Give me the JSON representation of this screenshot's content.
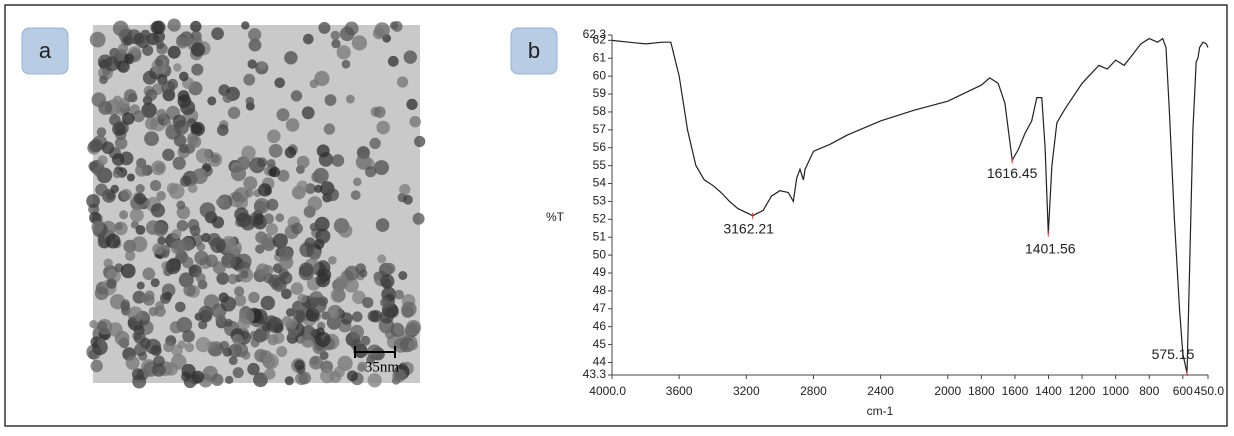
{
  "panels": {
    "a": {
      "label": "a",
      "scale_bar": "35nm"
    },
    "b": {
      "label": "b"
    }
  },
  "chart_data": {
    "type": "line",
    "y_label": "%T",
    "x_label": "cm-1",
    "x": [
      4000,
      3900,
      3800,
      3700,
      3650,
      3600,
      3550,
      3500,
      3450,
      3400,
      3350,
      3300,
      3250,
      3162,
      3100,
      3050,
      3000,
      2950,
      2920,
      2900,
      2880,
      2860,
      2850,
      2800,
      2700,
      2600,
      2400,
      2200,
      2000,
      1800,
      1750,
      1700,
      1660,
      1616,
      1580,
      1540,
      1500,
      1470,
      1440,
      1420,
      1401,
      1380,
      1350,
      1300,
      1200,
      1100,
      1050,
      1000,
      950,
      900,
      850,
      800,
      750,
      720,
      700,
      680,
      650,
      620,
      600,
      575,
      560,
      540,
      520,
      510,
      500,
      480,
      460,
      450
    ],
    "values": [
      62.0,
      61.9,
      61.8,
      61.9,
      61.9,
      60.0,
      57.0,
      55.0,
      54.2,
      53.9,
      53.5,
      53.0,
      52.6,
      52.2,
      52.5,
      53.3,
      53.6,
      53.5,
      53.0,
      54.3,
      54.8,
      54.2,
      54.8,
      55.8,
      56.2,
      56.7,
      57.5,
      58.1,
      58.6,
      59.5,
      59.9,
      59.6,
      58.5,
      55.3,
      55.9,
      56.8,
      57.5,
      58.8,
      58.8,
      56.0,
      51.2,
      55.0,
      57.4,
      58.2,
      59.6,
      60.6,
      60.4,
      60.9,
      60.6,
      61.2,
      61.8,
      62.1,
      61.9,
      62.1,
      61.6,
      58.0,
      52.0,
      47.0,
      44.5,
      43.4,
      49.0,
      57.0,
      60.8,
      61.0,
      61.6,
      61.9,
      61.8,
      61.6
    ],
    "color": "#222222",
    "peaks": {
      "x": [
        3162.21,
        1616.45,
        1401.56,
        575.15
      ],
      "y": [
        52.2,
        55.3,
        51.2,
        43.4
      ],
      "color": "#e03030"
    },
    "xlim": [
      4000,
      450
    ],
    "ylim": [
      43.3,
      62.3
    ],
    "xticks": [
      {
        "value": 4000,
        "label": "4000.0"
      },
      3600,
      3200,
      2800,
      2400,
      2000,
      1800,
      1600,
      1400,
      1200,
      1000,
      800,
      600,
      {
        "value": 450,
        "label": "450.0"
      }
    ],
    "yticks": [
      43.3,
      44,
      45,
      46,
      47,
      48,
      49,
      50,
      51,
      52,
      53,
      54,
      55,
      56,
      57,
      58,
      59,
      60,
      61,
      62,
      62.3
    ]
  }
}
